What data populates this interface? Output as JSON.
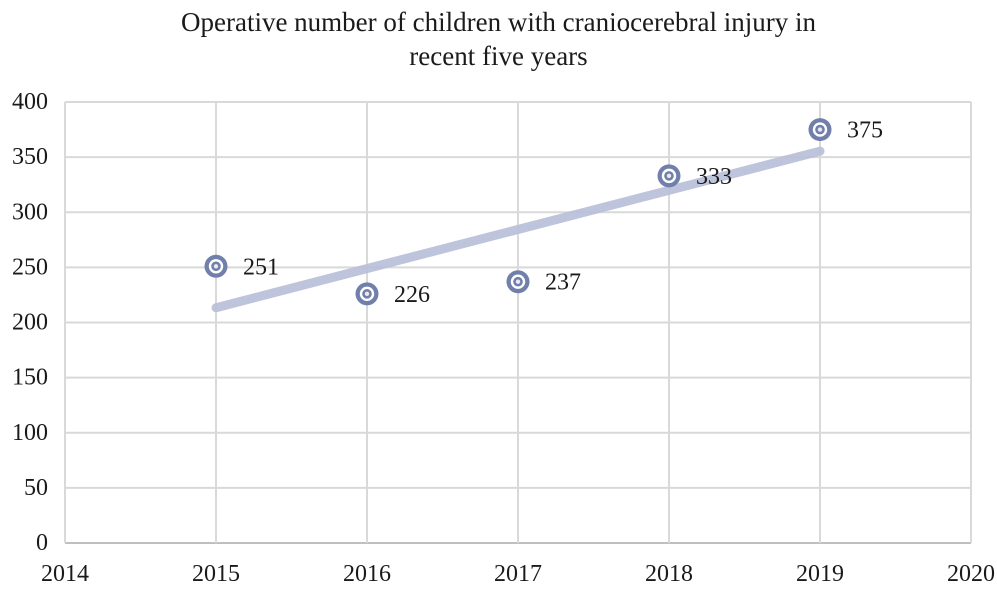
{
  "title_lines": [
    "Operative number of children with craniocerebral injury in",
    "recent five years"
  ],
  "chart_data": {
    "type": "scatter",
    "title": "Operative number of children with craniocerebral injury in recent five years",
    "xlabel": "",
    "ylabel": "",
    "x": [
      2015,
      2016,
      2017,
      2018,
      2019
    ],
    "values": [
      251,
      226,
      237,
      333,
      375
    ],
    "point_labels": [
      "251",
      "226",
      "237",
      "333",
      "375"
    ],
    "x_ticks": [
      2014,
      2015,
      2016,
      2017,
      2018,
      2019,
      2020
    ],
    "y_ticks": [
      0,
      50,
      100,
      150,
      200,
      250,
      300,
      350,
      400
    ],
    "xlim": [
      2014,
      2020
    ],
    "ylim": [
      0,
      400
    ],
    "grid": true,
    "legend": false,
    "trendline": {
      "type": "linear",
      "x_start": 2015,
      "y_start": 213.4,
      "x_end": 2019,
      "y_end": 355.4
    },
    "colors": {
      "marker": "#7180ab",
      "marker_center": "#e9e9ef",
      "trendline": "#b9bfd8",
      "gridline": "#d9d9d9",
      "axis_line": "#bfbfbf",
      "text": "#1a1a1a"
    }
  }
}
